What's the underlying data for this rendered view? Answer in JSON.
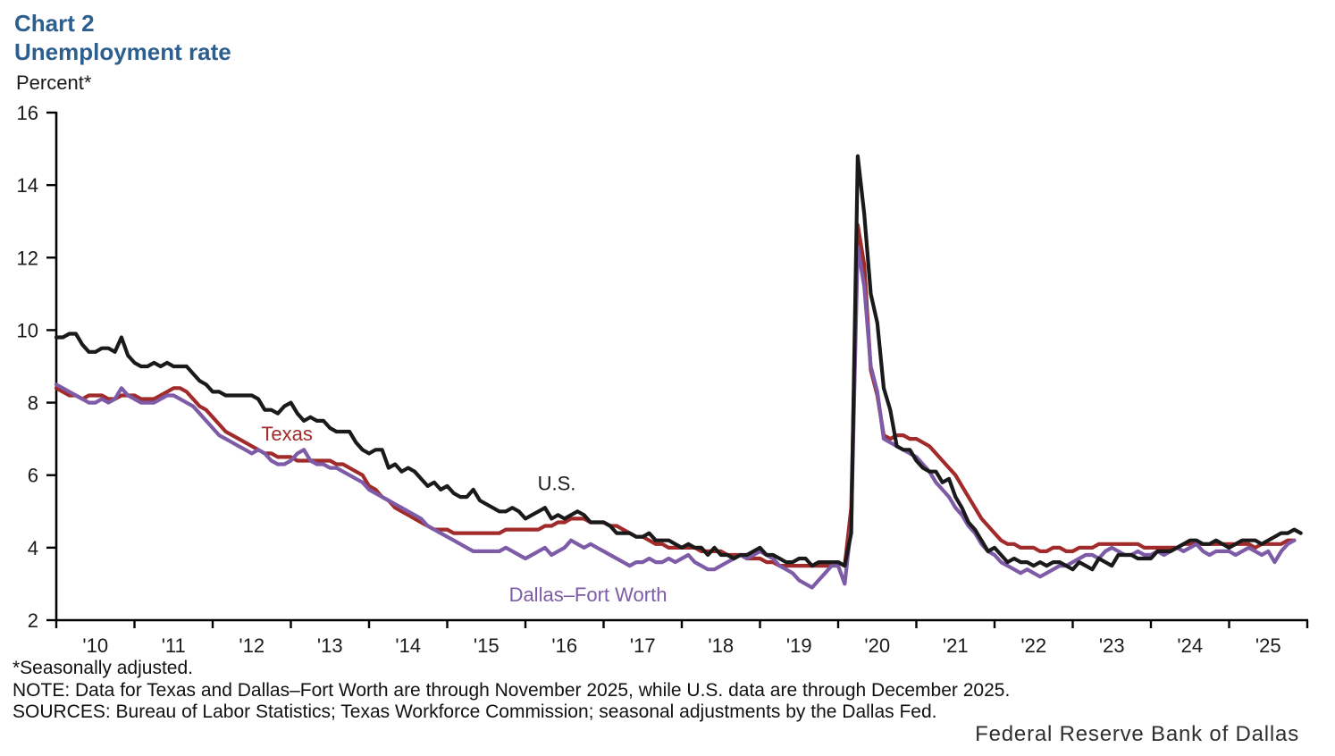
{
  "header": {
    "chart_label": "Chart 2",
    "title": "Unemployment rate"
  },
  "colors": {
    "title_blue": "#2C5E8E",
    "axis": "#000000",
    "us_line": "#1A1A1A",
    "texas_line": "#A02B2A",
    "dfw_line": "#7D5BA6"
  },
  "chart_data": {
    "type": "line",
    "title": "Unemployment rate",
    "xlabel": "",
    "ylabel": "Percent*",
    "ylim": [
      2,
      16
    ],
    "y_ticks": [
      2,
      4,
      6,
      8,
      10,
      12,
      14,
      16
    ],
    "xlim": [
      2010,
      2026
    ],
    "x_tick_labels": [
      "'10",
      "'11",
      "'12",
      "'13",
      "'14",
      "'15",
      "'16",
      "'17",
      "'18",
      "'19",
      "'20",
      "'21",
      "'22",
      "'23",
      "'24",
      "'25"
    ],
    "frequency": "monthly",
    "grid": false,
    "legend_position": "inline-labels",
    "series": [
      {
        "name": "U.S.",
        "color": "#1A1A1A",
        "z": 3,
        "start": "2010-01",
        "end": "2025-12",
        "values": [
          9.8,
          9.8,
          9.9,
          9.9,
          9.6,
          9.4,
          9.4,
          9.5,
          9.5,
          9.4,
          9.8,
          9.3,
          9.1,
          9.0,
          9.0,
          9.1,
          9.0,
          9.1,
          9.0,
          9.0,
          9.0,
          8.8,
          8.6,
          8.5,
          8.3,
          8.3,
          8.2,
          8.2,
          8.2,
          8.2,
          8.2,
          8.1,
          7.8,
          7.8,
          7.7,
          7.9,
          8.0,
          7.7,
          7.5,
          7.6,
          7.5,
          7.5,
          7.3,
          7.2,
          7.2,
          7.2,
          6.9,
          6.7,
          6.6,
          6.7,
          6.7,
          6.2,
          6.3,
          6.1,
          6.2,
          6.1,
          5.9,
          5.7,
          5.8,
          5.6,
          5.7,
          5.5,
          5.4,
          5.4,
          5.6,
          5.3,
          5.2,
          5.1,
          5.0,
          5.0,
          5.1,
          5.0,
          4.8,
          4.9,
          5.0,
          5.1,
          4.8,
          4.9,
          4.8,
          4.9,
          5.0,
          4.9,
          4.7,
          4.7,
          4.7,
          4.6,
          4.4,
          4.4,
          4.4,
          4.3,
          4.3,
          4.4,
          4.2,
          4.2,
          4.2,
          4.1,
          4.0,
          4.1,
          4.0,
          4.0,
          3.8,
          4.0,
          3.8,
          3.8,
          3.7,
          3.8,
          3.8,
          3.9,
          4.0,
          3.8,
          3.8,
          3.7,
          3.6,
          3.6,
          3.7,
          3.7,
          3.5,
          3.6,
          3.6,
          3.6,
          3.6,
          3.5,
          4.4,
          14.8,
          13.2,
          11.0,
          10.2,
          8.4,
          7.8,
          6.8,
          6.7,
          6.7,
          6.4,
          6.2,
          6.1,
          6.1,
          5.8,
          5.9,
          5.4,
          5.1,
          4.7,
          4.5,
          4.2,
          3.9,
          4.0,
          3.8,
          3.6,
          3.7,
          3.6,
          3.6,
          3.5,
          3.6,
          3.5,
          3.6,
          3.6,
          3.5,
          3.4,
          3.6,
          3.5,
          3.4,
          3.7,
          3.6,
          3.5,
          3.8,
          3.8,
          3.8,
          3.7,
          3.7,
          3.7,
          3.9,
          3.9,
          3.9,
          4.0,
          4.1,
          4.2,
          4.2,
          4.1,
          4.1,
          4.2,
          4.1,
          4.0,
          4.1,
          4.2,
          4.2,
          4.2,
          4.1,
          4.2,
          4.3,
          4.4,
          4.4,
          4.5,
          4.4
        ]
      },
      {
        "name": "Texas",
        "color": "#A02B2A",
        "z": 1,
        "start": "2010-01",
        "end": "2025-11",
        "values": [
          8.4,
          8.3,
          8.2,
          8.2,
          8.1,
          8.2,
          8.2,
          8.2,
          8.1,
          8.1,
          8.2,
          8.2,
          8.2,
          8.1,
          8.1,
          8.1,
          8.2,
          8.3,
          8.4,
          8.4,
          8.3,
          8.1,
          7.9,
          7.8,
          7.6,
          7.4,
          7.2,
          7.1,
          7.0,
          6.9,
          6.8,
          6.7,
          6.6,
          6.6,
          6.5,
          6.5,
          6.5,
          6.4,
          6.4,
          6.4,
          6.4,
          6.4,
          6.4,
          6.3,
          6.3,
          6.2,
          6.1,
          6.0,
          5.7,
          5.6,
          5.4,
          5.3,
          5.1,
          5.0,
          4.9,
          4.8,
          4.7,
          4.6,
          4.5,
          4.5,
          4.5,
          4.4,
          4.4,
          4.4,
          4.4,
          4.4,
          4.4,
          4.4,
          4.4,
          4.5,
          4.5,
          4.5,
          4.5,
          4.5,
          4.5,
          4.6,
          4.6,
          4.7,
          4.7,
          4.8,
          4.8,
          4.8,
          4.7,
          4.7,
          4.7,
          4.6,
          4.6,
          4.5,
          4.4,
          4.3,
          4.3,
          4.2,
          4.1,
          4.1,
          4.0,
          4.0,
          4.0,
          4.0,
          4.0,
          3.9,
          3.9,
          3.9,
          3.9,
          3.8,
          3.8,
          3.8,
          3.7,
          3.7,
          3.7,
          3.6,
          3.6,
          3.5,
          3.5,
          3.5,
          3.5,
          3.5,
          3.5,
          3.5,
          3.5,
          3.5,
          3.6,
          3.5,
          5.1,
          12.9,
          11.8,
          8.9,
          8.2,
          7.1,
          7.0,
          7.1,
          7.1,
          7.0,
          7.0,
          6.9,
          6.8,
          6.6,
          6.4,
          6.2,
          6.0,
          5.7,
          5.4,
          5.1,
          4.8,
          4.6,
          4.4,
          4.2,
          4.1,
          4.1,
          4.0,
          4.0,
          4.0,
          3.9,
          3.9,
          4.0,
          4.0,
          3.9,
          3.9,
          4.0,
          4.0,
          4.0,
          4.1,
          4.1,
          4.1,
          4.1,
          4.1,
          4.1,
          4.1,
          4.0,
          4.0,
          4.0,
          4.0,
          4.0,
          4.0,
          4.1,
          4.1,
          4.1,
          4.1,
          4.1,
          4.1,
          4.1,
          4.1,
          4.1,
          4.1,
          4.1,
          4.0,
          4.1,
          4.1,
          4.1,
          4.1,
          4.2,
          4.2
        ]
      },
      {
        "name": "Dallas–Fort Worth",
        "color": "#7D5BA6",
        "z": 2,
        "start": "2010-01",
        "end": "2025-11",
        "values": [
          8.5,
          8.4,
          8.3,
          8.2,
          8.1,
          8.0,
          8.0,
          8.1,
          8.0,
          8.1,
          8.4,
          8.2,
          8.1,
          8.0,
          8.0,
          8.0,
          8.1,
          8.2,
          8.2,
          8.1,
          8.0,
          7.9,
          7.7,
          7.5,
          7.3,
          7.1,
          7.0,
          6.9,
          6.8,
          6.7,
          6.6,
          6.7,
          6.6,
          6.4,
          6.3,
          6.3,
          6.4,
          6.6,
          6.7,
          6.4,
          6.3,
          6.3,
          6.2,
          6.2,
          6.1,
          6.0,
          5.9,
          5.8,
          5.6,
          5.5,
          5.4,
          5.3,
          5.2,
          5.1,
          5.0,
          4.9,
          4.8,
          4.6,
          4.5,
          4.4,
          4.3,
          4.2,
          4.1,
          4.0,
          3.9,
          3.9,
          3.9,
          3.9,
          3.9,
          4.0,
          3.9,
          3.8,
          3.7,
          3.8,
          3.9,
          4.0,
          3.8,
          3.9,
          4.0,
          4.2,
          4.1,
          4.0,
          4.1,
          4.0,
          3.9,
          3.8,
          3.7,
          3.6,
          3.5,
          3.6,
          3.6,
          3.7,
          3.6,
          3.6,
          3.7,
          3.6,
          3.7,
          3.8,
          3.6,
          3.5,
          3.4,
          3.4,
          3.5,
          3.6,
          3.7,
          3.8,
          3.7,
          3.8,
          3.9,
          3.8,
          3.7,
          3.5,
          3.4,
          3.3,
          3.1,
          3.0,
          2.9,
          3.1,
          3.3,
          3.5,
          3.5,
          3.0,
          4.6,
          12.3,
          11.2,
          9.0,
          8.3,
          7.0,
          6.9,
          6.8,
          6.7,
          6.6,
          6.5,
          6.3,
          6.1,
          5.8,
          5.6,
          5.4,
          5.1,
          4.9,
          4.6,
          4.4,
          4.1,
          3.9,
          3.8,
          3.6,
          3.5,
          3.4,
          3.3,
          3.4,
          3.3,
          3.2,
          3.3,
          3.4,
          3.5,
          3.5,
          3.6,
          3.7,
          3.8,
          3.8,
          3.7,
          3.9,
          4.0,
          3.9,
          3.8,
          3.8,
          3.9,
          3.8,
          3.8,
          3.9,
          3.8,
          3.9,
          4.0,
          3.9,
          4.0,
          4.1,
          3.9,
          3.8,
          3.9,
          3.9,
          3.9,
          3.8,
          3.9,
          4.0,
          3.9,
          3.8,
          3.9,
          3.6,
          3.9,
          4.1,
          4.2
        ]
      }
    ],
    "annotations": [
      {
        "text": "Texas",
        "year": 2012.95,
        "value": 7.15,
        "color": "#A02B2A"
      },
      {
        "text": "U.S.",
        "year": 2016.4,
        "value": 5.78,
        "color": "#1A1A1A"
      },
      {
        "text": "Dallas–Fort Worth",
        "year": 2016.8,
        "value": 2.72,
        "color": "#7D5BA6"
      }
    ]
  },
  "notes": [
    "*Seasonally adjusted.",
    "NOTE: Data for Texas and Dallas–Fort Worth are through November 2025, while U.S. data are through December 2025.",
    "SOURCES: Bureau of Labor Statistics; Texas Workforce Commission; seasonal adjustments by the Dallas Fed."
  ],
  "footer": {
    "brand": "Federal Reserve Bank of Dallas"
  }
}
